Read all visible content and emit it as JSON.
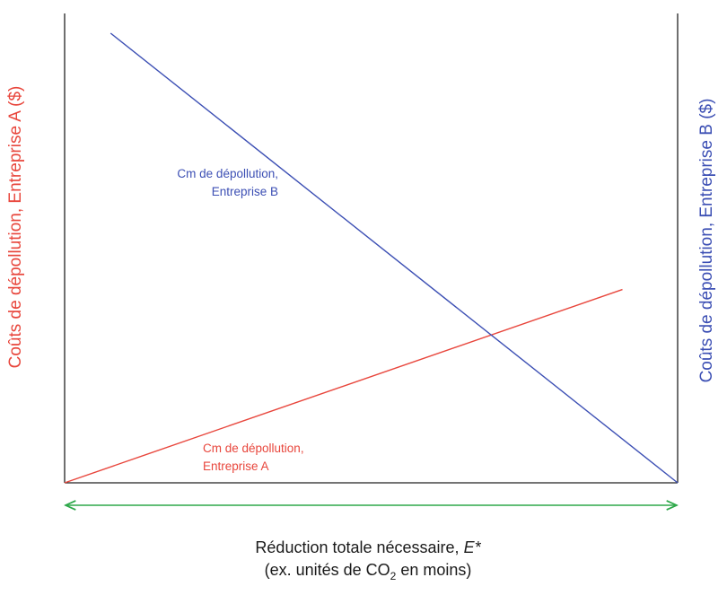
{
  "colors": {
    "firm_a": "#e8463c",
    "firm_b": "#3c4fb4",
    "arrow": "#2ea84a",
    "axis": "#222222"
  },
  "labels": {
    "y_left": "Coûts de dépollution, Entreprise A ($)",
    "y_right": "Coûts de dépollution, Entreprise B ($)",
    "curve_a_line1": "Cm de dépollution,",
    "curve_a_line2": "Entreprise A",
    "curve_b_line1": "Cm de dépollution,",
    "curve_b_line2": "Entreprise B",
    "x_line1": "Réduction totale nécessaire, ",
    "x_line1_var": "E*",
    "x_line2_pre": "(ex. unités de CO",
    "x_line2_sub": "2",
    "x_line2_post": " en moins)"
  },
  "chart_data": {
    "type": "line",
    "note_x": "horizontal axis spans total required reduction E*; firm A measured from left, firm B from right",
    "series": [
      {
        "name": "Cm de dépollution, Entreprise A",
        "x": [
          0,
          0.91
        ],
        "y": [
          0,
          0.43
        ]
      },
      {
        "name": "Cm de dépollution, Entreprise B",
        "x": [
          0.075,
          1.0
        ],
        "y": [
          1.0,
          0
        ]
      }
    ],
    "xlim": [
      0,
      1
    ],
    "ylim": [
      0,
      1
    ]
  }
}
